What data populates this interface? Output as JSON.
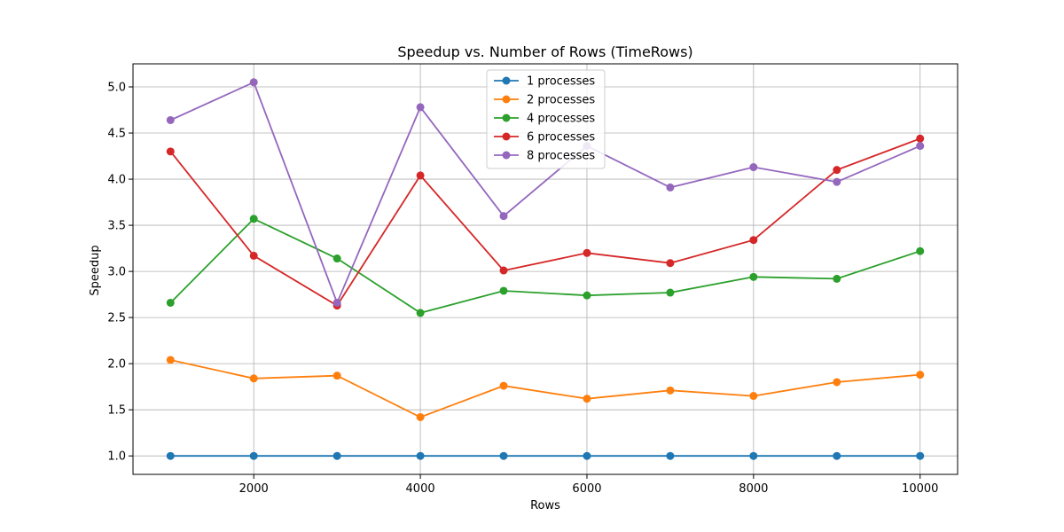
{
  "chart_data": {
    "type": "line",
    "title": "Speedup vs. Number of Rows (TimeRows)",
    "xlabel": "Rows",
    "ylabel": "Speedup",
    "x": [
      1000,
      2000,
      3000,
      4000,
      5000,
      6000,
      7000,
      8000,
      9000,
      10000
    ],
    "xlim": [
      550,
      10450
    ],
    "ylim": [
      0.8,
      5.25
    ],
    "xticks": [
      2000,
      4000,
      6000,
      8000,
      10000
    ],
    "xtick_labels": [
      "2000",
      "4000",
      "6000",
      "8000",
      "10000"
    ],
    "yticks": [
      1.0,
      1.5,
      2.0,
      2.5,
      3.0,
      3.5,
      4.0,
      4.5,
      5.0
    ],
    "ytick_labels": [
      "1.0",
      "1.5",
      "2.0",
      "2.5",
      "3.0",
      "3.5",
      "4.0",
      "4.5",
      "5.0"
    ],
    "grid": true,
    "legend_position": "top-center",
    "series": [
      {
        "name": "1 processes",
        "color": "#1f77b4",
        "values": [
          1.0,
          1.0,
          1.0,
          1.0,
          1.0,
          1.0,
          1.0,
          1.0,
          1.0,
          1.0
        ]
      },
      {
        "name": "2 processes",
        "color": "#ff7f0e",
        "values": [
          2.04,
          1.84,
          1.87,
          1.42,
          1.76,
          1.62,
          1.71,
          1.65,
          1.8,
          1.88
        ]
      },
      {
        "name": "4 processes",
        "color": "#2ca02c",
        "values": [
          2.66,
          3.57,
          3.14,
          2.55,
          2.79,
          2.74,
          2.77,
          2.94,
          2.92,
          3.22
        ]
      },
      {
        "name": "6 processes",
        "color": "#d62728",
        "values": [
          4.3,
          3.17,
          2.63,
          4.04,
          3.01,
          3.2,
          3.09,
          3.34,
          4.1,
          4.44
        ]
      },
      {
        "name": "8 processes",
        "color": "#9467bd",
        "values": [
          4.64,
          5.05,
          2.66,
          4.78,
          3.6,
          4.36,
          3.91,
          4.13,
          3.97,
          4.36
        ]
      }
    ]
  }
}
